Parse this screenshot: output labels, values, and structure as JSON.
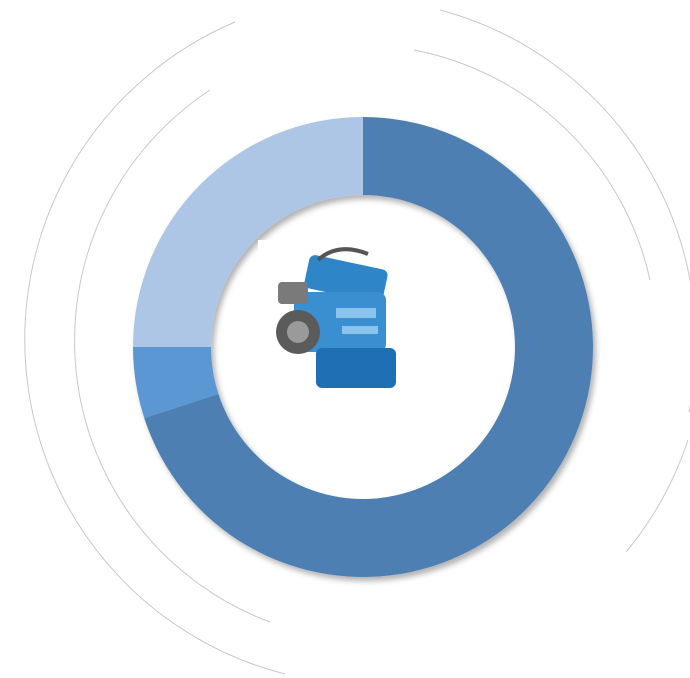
{
  "chart_data": {
    "type": "donut",
    "values": [
      70,
      5,
      25
    ],
    "colors": [
      "#4d7fb2",
      "#5a97d3",
      "#aec6e6"
    ]
  }
}
